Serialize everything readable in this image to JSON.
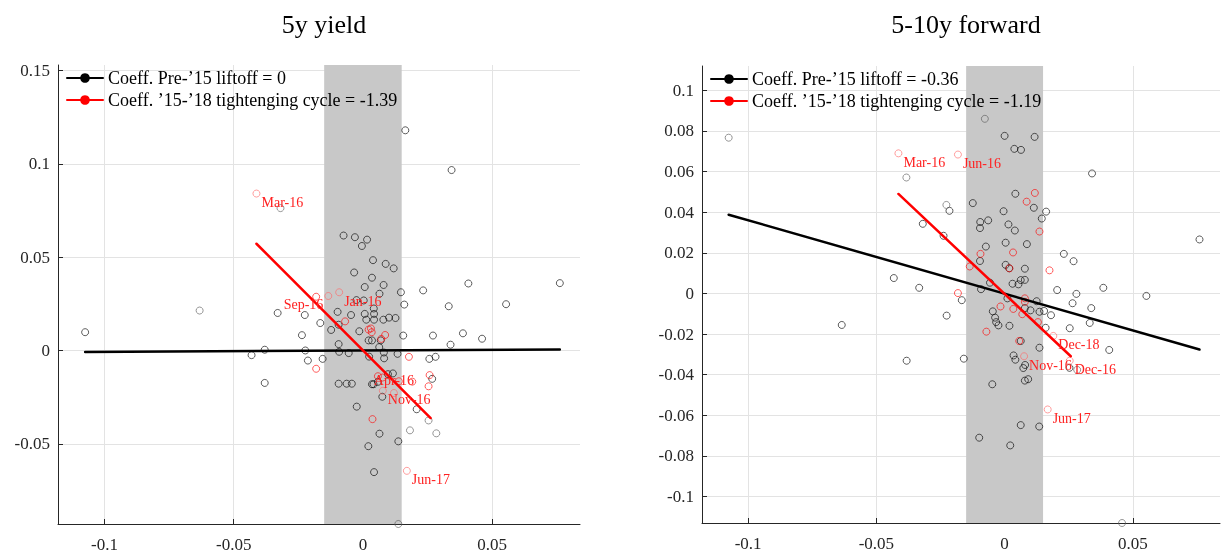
{
  "chart_data": [
    {
      "type": "scatter",
      "title": "5y yield",
      "xlim": [
        -0.118,
        0.084
      ],
      "ylim": [
        -0.093,
        0.153
      ],
      "xticks": [
        -0.1,
        -0.05,
        0,
        0.05
      ],
      "yticks": [
        -0.05,
        0,
        0.05,
        0.1,
        0.15
      ],
      "grid": true,
      "legend": "top left",
      "marker": "circle",
      "bands": [
        {
          "axis": "x",
          "from": -0.015,
          "to": 0.015,
          "color": "#c8c8c8"
        }
      ],
      "series": [
        {
          "color": "#000000",
          "x": [
            0.0164,
            0.0343,
            -0.0075,
            -0.0031,
            0.0016,
            -0.0004,
            0.0039,
            0.0088,
            0.0119,
            -0.0034,
            0.0035,
            0.0408,
            0.0762,
            0.0007,
            0.008,
            0.0064,
            0.0147,
            0.0233,
            -0.0025,
            0.0003,
            0.016,
            0.0332,
            0.0554,
            0.0042,
            -0.033,
            -0.0225,
            -0.0098,
            -0.0046,
            0.0007,
            0.0043,
            0.0013,
            0.0043,
            0.0079,
            0.0101,
            0.0126,
            -0.0165,
            -0.0094,
            -0.0123,
            -0.0014,
            0.0387,
            0.0461,
            -0.0236,
            0.0156,
            0.0271,
            0.0022,
            0.0035,
            0.0069,
            -0.1075,
            -0.0094,
            0.0339,
            -0.038,
            -0.0223,
            -0.0092,
            -0.0055,
            0.0063,
            0.0081,
            0.0134,
            -0.0431,
            -0.0213,
            -0.0156,
            0.0024,
            0.0082,
            0.0257,
            0.0281,
            0.0268,
            0.0097,
            0.0116,
            -0.038,
            -0.0094,
            -0.0063,
            -0.0043,
            0.0035,
            0.0041,
            0.0058,
            0.0075,
            -0.0024,
            0.0208,
            0.0064,
            0.0137,
            0.0021,
            0.0043
          ],
          "values": [
            0.118,
            0.0967,
            0.0616,
            0.0607,
            0.0594,
            0.056,
            0.0484,
            0.0464,
            0.044,
            0.0418,
            0.039,
            0.0359,
            0.0361,
            0.034,
            0.0351,
            0.0304,
            0.0312,
            0.0322,
            0.027,
            0.0268,
            0.0246,
            0.0237,
            0.0248,
            0.0225,
            0.0201,
            0.019,
            0.0207,
            0.019,
            0.0196,
            0.0196,
            0.0165,
            0.0165,
            0.0165,
            0.0176,
            0.0174,
            0.0147,
            0.0138,
            0.011,
            0.0103,
            0.0092,
            0.0063,
            0.0082,
            0.008,
            0.008,
            0.0054,
            0.0054,
            0.0054,
            0.0098,
            0.0034,
            0.0031,
            0.0004,
            0,
            -0.0007,
            -0.0014,
            0.0018,
            -0.0011,
            -0.0018,
            -0.0025,
            -0.0054,
            -0.0045,
            -0.0033,
            -0.0042,
            -0.0045,
            -0.0034,
            -0.0152,
            -0.0127,
            -0.0123,
            -0.0174,
            -0.0178,
            -0.0178,
            -0.0178,
            -0.0181,
            -0.0181,
            -0.0168,
            -0.0248,
            -0.0301,
            -0.0315,
            -0.0446,
            -0.0487,
            -0.0513,
            -0.0652
          ]
        },
        {
          "color": "#595959",
          "x": [
            -0.0319,
            -0.0632,
            0.0254,
            0.0182,
            0.0284,
            0.0137
          ],
          "values": [
            0.0763,
            0.0214,
            -0.0375,
            -0.0428,
            -0.0444,
            -0.093
          ]
        },
        {
          "color": "#ff0000",
          "x": [
            -0.0181,
            -0.0181,
            -0.0069,
            0.0022,
            0.0034,
            0.0031,
            0.0071,
            0.0086,
            0.0178,
            0.0058,
            0.0076,
            0.0139,
            0.0191,
            0.0258,
            0.0254,
            0.0037
          ],
          "values": [
            0.0288,
            -0.0098,
            0.0156,
            0.0112,
            0.0098,
            0.0118,
            0.0062,
            0.0083,
            -0.0034,
            -0.0138,
            -0.0145,
            -0.0165,
            -0.0167,
            -0.0132,
            -0.0192,
            -0.0368
          ]
        },
        {
          "color": "#ff6666",
          "x": [
            -0.0412,
            -0.0092,
            -0.0134,
            0.0077,
            0.012,
            0.017
          ],
          "values": [
            0.0841,
            0.0312,
            0.0292,
            -0.0216,
            -0.0228,
            -0.0645
          ]
        },
        {
          "type": "line",
          "name": "Coeff. Pre-’15 liftoff = 0",
          "color": "#000000",
          "marker": "none",
          "x": [
            -0.1075,
            0.0762
          ],
          "values": [
            -0.0008,
            0.0005
          ]
        },
        {
          "type": "line",
          "name": "Coeff. ’15-’18 tightenging cycle = -1.39",
          "color": "#ff0000",
          "marker": "none",
          "x": [
            -0.0412,
            0.0262
          ],
          "values": [
            0.0572,
            -0.0362
          ]
        }
      ],
      "annotations": [
        {
          "text": "Mar-16",
          "x": -0.0412,
          "y": 0.0841
        },
        {
          "text": "Jan-16",
          "x": -0.0092,
          "y": 0.0312
        },
        {
          "text": "Sep-16",
          "x": -0.0134,
          "y": 0.0292
        },
        {
          "text": "Nov-16",
          "x": 0.0077,
          "y": -0.0216
        },
        {
          "text": "Apr-16",
          "x": 0.012,
          "y": -0.0228
        },
        {
          "text": "Jun-17",
          "x": 0.017,
          "y": -0.0645
        }
      ]
    },
    {
      "type": "scatter",
      "title": "5-10y forward",
      "xlim": [
        -0.118,
        0.084
      ],
      "ylim": [
        -0.113,
        0.112
      ],
      "xticks": [
        -0.1,
        -0.05,
        0,
        0.05
      ],
      "yticks": [
        -0.1,
        -0.08,
        -0.06,
        -0.04,
        -0.02,
        0,
        0.02,
        0.04,
        0.06,
        0.08,
        0.1
      ],
      "grid": true,
      "legend": "top left",
      "marker": "circle",
      "bands": [
        {
          "axis": "x",
          "from": -0.015,
          "to": 0.015,
          "color": "#c8c8c8"
        }
      ],
      "series": [
        {
          "color": "#000000",
          "x": [
            0,
            0.0117,
            0.0038,
            0.0064,
            0.0341,
            0.0042,
            -0.0124,
            0.0114,
            0.0162,
            -0.0004,
            -0.0215,
            0.0145,
            -0.0095,
            -0.0064,
            -0.0096,
            0.0015,
            0.004,
            -0.0319,
            -0.0238,
            0.0004,
            0.0087,
            -0.0073,
            0.0231,
            0.0269,
            -0.0096,
            0.0004,
            0.0018,
            0.0079,
            0.076,
            -0.0432,
            -0.0333,
            -0.0057,
            0.0031,
            0.0054,
            0.0063,
            0.0079,
            -0.0092,
            0.0205,
            0.0385,
            0.028,
            0.0553,
            0.0011,
            0.0125,
            -0.0167,
            0.0265,
            0.0338,
            -0.0046,
            0.0079,
            0.0101,
            0.0136,
            0.0154,
            0.0181,
            -0.0226,
            -0.0037,
            -0.0033,
            -0.0024,
            0.0019,
            0.016,
            0.0254,
            0.0332,
            -0.0635,
            0.0136,
            0.0408,
            0.0063,
            -0.0159,
            -0.0382,
            0.0035,
            0.0042,
            0.0073,
            0.008,
            0.0253,
            0.0079,
            0.0092,
            -0.0048,
            0.0063,
            0.0135,
            -0.0099,
            0.0022
          ],
          "values": [
            0.0776,
            0.0771,
            0.0712,
            0.0707,
            0.0591,
            0.0491,
            0.0445,
            0.0422,
            0.0403,
            0.0405,
            0.0407,
            0.0369,
            0.0352,
            0.036,
            0.0322,
            0.034,
            0.031,
            0.0343,
            0.0284,
            0.025,
            0.0243,
            0.0231,
            0.0195,
            0.0159,
            0.016,
            0.0141,
            0.0124,
            0.0122,
            0.0266,
            0.0076,
            0.0028,
            0.0053,
            0.0048,
            0.0045,
            0.0066,
            0.0067,
            0.0021,
            0.0017,
            0.0028,
            -0.0002,
            -0.0012,
            -0.0024,
            -0.0038,
            -0.0033,
            -0.0048,
            -0.0072,
            -0.0088,
            -0.0072,
            -0.0083,
            -0.009,
            -0.0086,
            -0.0107,
            -0.0109,
            -0.0119,
            -0.0141,
            -0.0157,
            -0.0159,
            -0.0169,
            -0.0171,
            -0.0145,
            -0.0155,
            -0.0267,
            -0.0278,
            -0.0234,
            -0.0321,
            -0.0331,
            -0.0305,
            -0.0326,
            -0.0367,
            -0.0352,
            -0.0366,
            -0.0429,
            -0.0422,
            -0.0447,
            -0.0648,
            -0.0655,
            -0.071,
            -0.0748
          ]
        },
        {
          "color": "#595959",
          "x": [
            -0.1076,
            -0.0077,
            -0.0383,
            -0.0227,
            0.0283,
            0.0458
          ],
          "values": [
            0.0767,
            0.086,
            0.0571,
            0.0436,
            -0.0376,
            -0.113
          ]
        },
        {
          "color": "#ff0000",
          "x": [
            0.0118,
            0.0086,
            0.0136,
            -0.0094,
            0.0033,
            -0.0136,
            0.0019,
            0.0175,
            -0.0182,
            -0.0016,
            0.0079,
            0.0079,
            0.0034,
            0.0069,
            0.013,
            -0.0071,
            0.0057
          ],
          "values": [
            0.0495,
            0.0452,
            0.0305,
            0.0195,
            0.0202,
            0.0133,
            0.0124,
            0.0114,
            0.0002,
            -0.0064,
            -0.0024,
            -0.0041,
            -0.0076,
            -0.0102,
            -0.0141,
            -0.0188,
            -0.0234
          ]
        },
        {
          "color": "#ff6666",
          "x": [
            -0.0414,
            -0.0182,
            0.019,
            0.0076,
            0.0254,
            0.0168
          ],
          "values": [
            0.069,
            0.0684,
            -0.0209,
            -0.0309,
            -0.0331,
            -0.0571
          ]
        },
        {
          "type": "line",
          "name": "Coeff. Pre-’15 liftoff = -0.36",
          "color": "#000000",
          "marker": "none",
          "x": [
            -0.1076,
            0.076
          ],
          "values": [
            0.0388,
            -0.0276
          ]
        },
        {
          "type": "line",
          "name": "Coeff. ’15-’18 tightenging cycle = -1.19",
          "color": "#ff0000",
          "marker": "none",
          "x": [
            -0.0414,
            0.0258
          ],
          "values": [
            0.049,
            -0.0309
          ]
        }
      ],
      "annotations": [
        {
          "text": "Mar-16",
          "x": -0.0414,
          "y": 0.069
        },
        {
          "text": "Jun-16",
          "x": -0.0182,
          "y": 0.0684
        },
        {
          "text": "Dec-18",
          "x": 0.019,
          "y": -0.0209
        },
        {
          "text": "Nov-16",
          "x": 0.0076,
          "y": -0.0309
        },
        {
          "text": "Dec-16",
          "x": 0.0254,
          "y": -0.0331
        },
        {
          "text": "Jun-17",
          "x": 0.0168,
          "y": -0.0571
        }
      ]
    }
  ]
}
